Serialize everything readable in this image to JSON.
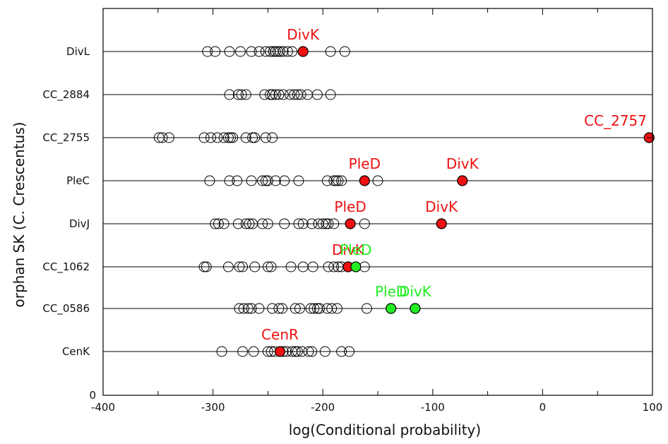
{
  "chart_data": {
    "type": "scatter",
    "title": "",
    "xlabel": "log(Conditional probability)",
    "ylabel": "orphan SK (C. Crescentus)",
    "xlim": [
      -400,
      100
    ],
    "x_ticks": [
      "-400",
      "-300",
      "-200",
      "-100",
      "0",
      "100"
    ],
    "y_zero_label": "0",
    "grid": false,
    "colors": {
      "red": "#ee1111",
      "green": "#22ee22",
      "open": "#ffffff",
      "line": "#000000"
    },
    "rows": [
      {
        "label": "DivL",
        "background": [
          -305,
          -298,
          -285,
          -275,
          -265,
          -258,
          -252,
          -248,
          -245,
          -243,
          -241,
          -239,
          -236,
          -232,
          -228,
          -193,
          -180
        ],
        "highlights": [
          {
            "name": "DivK",
            "x": -218,
            "color": "red"
          }
        ]
      },
      {
        "label": "CC_2884",
        "background": [
          -285,
          -277,
          -274,
          -270,
          -253,
          -248,
          -246,
          -243,
          -240,
          -236,
          -230,
          -226,
          -223,
          -220,
          -214,
          -205,
          -193
        ],
        "highlights": []
      },
      {
        "label": "CC_2755",
        "background": [
          -349,
          -346,
          -340,
          -308,
          -302,
          -296,
          -290,
          -286,
          -284,
          -282,
          -270,
          -264,
          -262,
          -252,
          -246
        ],
        "highlights": [
          {
            "name": "CC_2757",
            "x": 97,
            "color": "red"
          }
        ]
      },
      {
        "label": "PleC",
        "background": [
          -303,
          -285,
          -278,
          -265,
          -255,
          -252,
          -250,
          -243,
          -235,
          -222,
          -196,
          -190,
          -188,
          -186,
          -183,
          -150
        ],
        "highlights": [
          {
            "name": "PleD",
            "x": -162,
            "color": "red"
          },
          {
            "name": "DivK",
            "x": -73,
            "color": "red"
          }
        ]
      },
      {
        "label": "DivJ",
        "background": [
          -298,
          -295,
          -290,
          -277,
          -270,
          -267,
          -264,
          -255,
          -250,
          -235,
          -222,
          -218,
          -210,
          -204,
          -200,
          -197,
          -195,
          -190,
          -162
        ],
        "highlights": [
          {
            "name": "PleD",
            "x": -175,
            "color": "red"
          },
          {
            "name": "DivK",
            "x": -92,
            "color": "red"
          }
        ]
      },
      {
        "label": "CC_1062",
        "background": [
          -308,
          -306,
          -286,
          -276,
          -273,
          -262,
          -250,
          -247,
          -229,
          -218,
          -209,
          -195,
          -190,
          -186,
          -183,
          -162
        ],
        "highlights": [
          {
            "name": "DivK",
            "x": -177,
            "color": "red"
          },
          {
            "name": "PleD",
            "x": -170,
            "color": "green"
          }
        ]
      },
      {
        "label": "CC_0586",
        "background": [
          -276,
          -272,
          -268,
          -265,
          -258,
          -246,
          -240,
          -237,
          -225,
          -221,
          -211,
          -208,
          -205,
          -203,
          -196,
          -192,
          -187,
          -160
        ],
        "highlights": [
          {
            "name": "PleD",
            "x": -138,
            "color": "green"
          },
          {
            "name": "DivK",
            "x": -116,
            "color": "green"
          }
        ]
      },
      {
        "label": "CenK",
        "background": [
          -292,
          -273,
          -263,
          -250,
          -247,
          -244,
          -236,
          -233,
          -228,
          -225,
          -223,
          -219,
          -213,
          -210,
          -198,
          -183,
          -176
        ],
        "highlights": [
          {
            "name": "CenR",
            "x": -239,
            "color": "red"
          }
        ]
      }
    ]
  }
}
